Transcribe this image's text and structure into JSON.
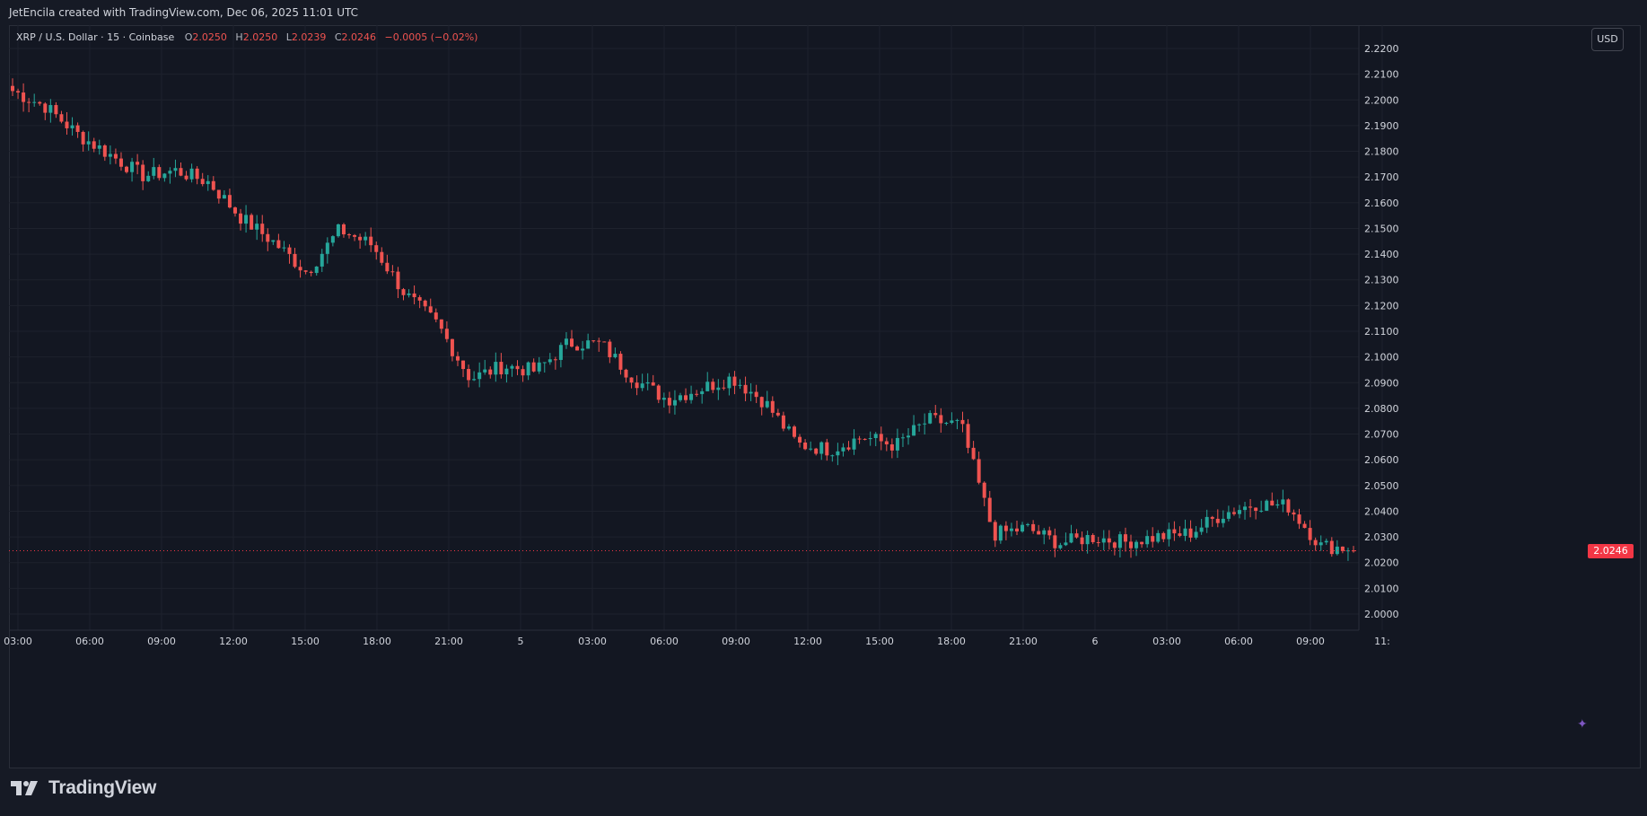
{
  "header": {
    "author_line": "JetEncila created with TradingView.com, Dec 06, 2025 11:01 UTC"
  },
  "legend": {
    "symbol": "XRP / U.S. Dollar · 15 · Coinbase",
    "open_label": "O",
    "open": "2.0250",
    "high_label": "H",
    "high": "2.0250",
    "low_label": "L",
    "low": "2.0239",
    "close_label": "C",
    "close": "2.0246",
    "change": "−0.0005 (−0.02%)"
  },
  "currency_button": "USD",
  "last_price_label": "2.0246",
  "brand": {
    "name": "TradingView"
  },
  "colors": {
    "background": "#131722",
    "grid": "#1e222d",
    "up": "#26a69a",
    "down": "#ef5350",
    "axis_text": "#d1d4dc",
    "price_tag": "#f23645"
  },
  "chart_data": {
    "type": "candlestick",
    "interval": "15",
    "ylim": [
      1.995,
      2.225
    ],
    "y_ticks": [
      "2.2200",
      "2.2100",
      "2.2000",
      "2.1900",
      "2.1800",
      "2.1700",
      "2.1600",
      "2.1500",
      "2.1400",
      "2.1300",
      "2.1200",
      "2.1100",
      "2.1000",
      "2.0900",
      "2.0800",
      "2.0700",
      "2.0600",
      "2.0500",
      "2.0400",
      "2.0300",
      "2.0200",
      "2.0100",
      "2.0000"
    ],
    "x_ticks": [
      "03:00",
      "06:00",
      "09:00",
      "12:00",
      "15:00",
      "18:00",
      "21:00",
      "5",
      "03:00",
      "06:00",
      "09:00",
      "12:00",
      "15:00",
      "18:00",
      "21:00",
      "6",
      "03:00",
      "06:00",
      "09:00",
      "11:"
    ],
    "last_price": 2.0246,
    "anchors": [
      [
        2.206,
        2.201
      ],
      [
        2.199,
        2.196
      ],
      [
        2.19,
        2.183
      ],
      [
        2.179,
        2.178
      ],
      [
        2.173,
        2.168
      ],
      [
        2.171,
        2.174
      ],
      [
        2.172,
        2.164
      ],
      [
        2.159,
        2.149
      ],
      [
        2.152,
        2.137
      ],
      [
        2.144,
        2.122
      ],
      [
        2.142,
        2.157
      ],
      [
        2.149,
        2.138
      ],
      [
        2.129,
        2.12
      ],
      [
        2.125,
        2.1
      ],
      [
        2.09,
        2.093
      ],
      [
        2.102,
        2.091
      ],
      [
        2.094,
        2.095
      ],
      [
        2.101,
        2.11
      ],
      [
        2.108,
        2.102
      ],
      [
        2.095,
        2.088
      ],
      [
        2.086,
        2.081
      ],
      [
        2.085,
        2.09
      ],
      [
        2.093,
        2.091
      ],
      [
        2.086,
        2.079
      ],
      [
        2.072,
        2.06
      ],
      [
        2.062,
        2.066
      ],
      [
        2.068,
        2.07
      ],
      [
        2.068,
        2.063
      ],
      [
        2.062,
        2.089
      ],
      [
        2.083,
        2.064
      ],
      [
        2.032,
        2.03
      ],
      [
        2.04,
        2.027
      ],
      [
        2.024,
        2.031
      ],
      [
        2.032,
        2.028
      ],
      [
        2.026,
        2.03
      ],
      [
        2.033,
        2.027
      ],
      [
        2.03,
        2.033
      ],
      [
        2.038,
        2.04
      ],
      [
        2.043,
        2.043
      ],
      [
        2.048,
        2.036
      ],
      [
        2.032,
        2.021
      ],
      [
        2.025,
        2.026
      ]
    ]
  }
}
